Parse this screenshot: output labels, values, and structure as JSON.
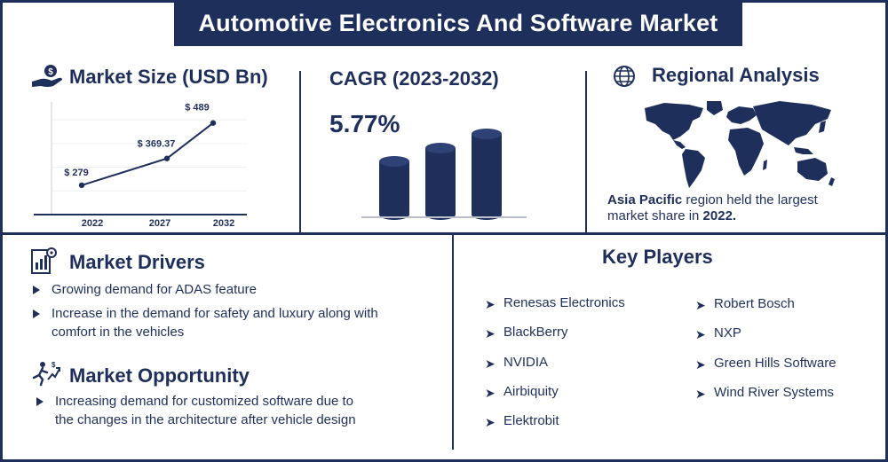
{
  "title": "Automotive Electronics And Software Market",
  "market_size": {
    "heading": "Market Size (USD Bn)"
  },
  "cagr": {
    "heading": "CAGR (2023-2032)",
    "value": "5.77%"
  },
  "regional": {
    "heading": "Regional Analysis",
    "highlight": "Asia Pacific",
    "text": " region held the largest",
    "text2": "market share in ",
    "year": "2022."
  },
  "drivers": {
    "heading": "Market Drivers",
    "items": [
      "Growing demand for ADAS feature",
      "Increase in the demand for safety and luxury along with",
      "comfort in the vehicles"
    ]
  },
  "opportunity": {
    "heading": "Market Opportunity",
    "items": [
      "Increasing demand for customized software due to",
      "the changes in the architecture after vehicle design"
    ]
  },
  "key_players": {
    "heading": "Key Players",
    "left": [
      "Renesas Electronics",
      "BlackBerry",
      "NVIDIA",
      "Airbiquity",
      "Elektrobit"
    ],
    "right": [
      "Robert Bosch",
      "NXP",
      "Green Hills Software",
      "Wind River Systems"
    ]
  },
  "colors": {
    "navy": "#1f2f5c"
  },
  "chart_data": {
    "type": "line",
    "categories": [
      "2022",
      "2027",
      "2032"
    ],
    "values": [
      279,
      369.37,
      489
    ],
    "labels": [
      "$ 279",
      "$ 369.37",
      "$ 489"
    ],
    "ylim": [
      180,
      560
    ],
    "grid": true
  }
}
